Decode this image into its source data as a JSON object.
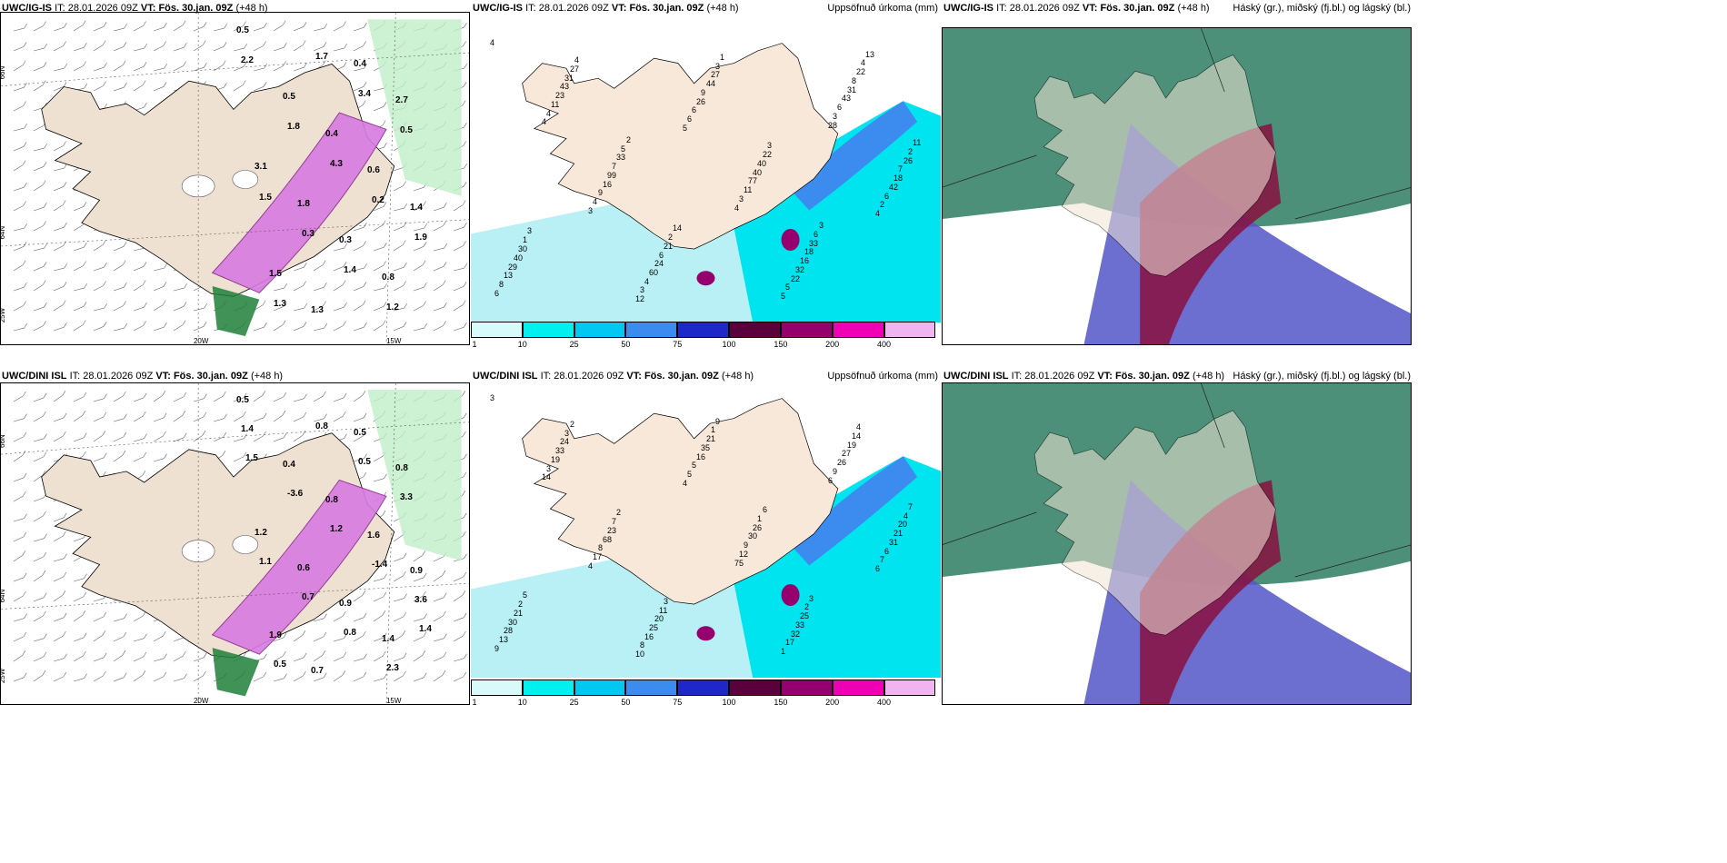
{
  "panels": [
    {
      "model": "UWC/IG-IS",
      "it_label": "IT:",
      "it": "28.01.2026 09Z",
      "vt_label": "VT:",
      "vt": "Fös. 30.jan. 09Z",
      "lead": "(+48 h)",
      "right_title": "",
      "type": "temp"
    },
    {
      "model": "UWC/IG-IS",
      "it_label": "IT:",
      "it": "28.01.2026 09Z",
      "vt_label": "VT:",
      "vt": "Fös. 30.jan. 09Z",
      "lead": "(+48 h)",
      "right_title": "Uppsöfnuð úrkoma (mm)",
      "type": "precip"
    },
    {
      "model": "UWC/IG-IS",
      "it_label": "IT:",
      "it": "28.01.2026 09Z",
      "vt_label": "VT:",
      "vt": "Fös. 30.jan. 09Z",
      "lead": "(+48 h)",
      "right_title": "Háský (gr.), miðský (fj.bl.) og lágský (bl.)",
      "type": "cloud"
    },
    {
      "model": "UWC/DINI ISL",
      "it_label": "IT:",
      "it": "28.01.2026 09Z",
      "vt_label": "VT:",
      "vt": "Fös. 30.jan. 09Z",
      "lead": "(+48 h)",
      "right_title": "",
      "type": "temp"
    },
    {
      "model": "UWC/DINI ISL",
      "it_label": "IT:",
      "it": "28.01.2026 09Z",
      "vt_label": "VT:",
      "vt": "Fös. 30.jan. 09Z",
      "lead": "(+48 h)",
      "right_title": "Uppsöfnuð úrkoma (mm)",
      "type": "precip"
    },
    {
      "model": "UWC/DINI ISL",
      "it_label": "IT:",
      "it": "28.01.2026 09Z",
      "vt_label": "VT:",
      "vt": "Fös. 30.jan. 09Z",
      "lead": "(+48 h)",
      "right_title": "Háský (gr.), miðský (fj.bl.) og lágský (bl.)",
      "type": "cloud"
    }
  ],
  "axis_labels": {
    "lat_top": "66N",
    "lat_mid": "64N",
    "lat_bottom": "25W",
    "lon_left": "20W",
    "lon_right": "15W"
  },
  "colorbar": {
    "ticks": [
      "1",
      "10",
      "25",
      "50",
      "75",
      "100",
      "150",
      "200",
      "400"
    ],
    "colors": [
      "#d8fafa",
      "#00f0f0",
      "#00c8f0",
      "#3c8cf0",
      "#1e28c8",
      "#5a003c",
      "#96006e",
      "#f000b4",
      "#f0b4f0"
    ]
  },
  "temp_labels_top": [
    "0.5",
    "1.4",
    "2.7",
    "0.8",
    "0.6",
    "0.4",
    "0.3",
    "0.4",
    "1.3",
    "1.8",
    "0.5",
    "1.5",
    "3.1",
    "2.2",
    "1.9",
    "0.5",
    "1.2",
    "0.2",
    "3.4",
    "1.4",
    "4.3",
    "1.7",
    "0.3",
    "1.8",
    "1.3",
    "1.5"
  ],
  "temp_labels_bottom": [
    "0.5",
    "0.9",
    "0.8",
    "1.4",
    "1.6",
    "0.5",
    "0.9",
    "0.8",
    "0.7",
    "0.6",
    "0.4",
    "1.9",
    "1.2",
    "1.4",
    "3.6",
    "3.3",
    "2.3",
    "-1.4",
    "0.5",
    "0.8",
    "1.2",
    "0.8",
    "0.7",
    "-3.6",
    "0.5",
    "1.1",
    "1.5",
    "1.4"
  ],
  "precip_labels_top": [
    "4",
    "5",
    "4",
    "12",
    "28",
    "3",
    "5",
    "4",
    "4",
    "6",
    "6",
    "2",
    "3",
    "3",
    "4",
    "5",
    "4",
    "3",
    "8",
    "6",
    "6",
    "4",
    "6",
    "9",
    "22",
    "11",
    "11",
    "13",
    "26",
    "42",
    "60",
    "43",
    "16",
    "32",
    "23",
    "77",
    "29",
    "9",
    "18",
    "24",
    "31",
    "99",
    "16",
    "43",
    "40",
    "40",
    "44",
    "7",
    "6",
    "8",
    "7",
    "18",
    "31",
    "40",
    "30",
    "27",
    "26",
    "21",
    "22",
    "33",
    "33",
    "27",
    "22",
    "1",
    "3",
    "2",
    "2",
    "4",
    "5",
    "6",
    "4",
    "3",
    "3",
    "1",
    "11",
    "14",
    "13",
    "2",
    "3"
  ],
  "precip_labels_bottom": [
    "3",
    "4",
    "6",
    "10",
    "6",
    "4",
    "1",
    "14",
    "75",
    "9",
    "5",
    "7",
    "8",
    "9",
    "17",
    "17",
    "3",
    "12",
    "13",
    "5",
    "6",
    "16",
    "26",
    "8",
    "32",
    "19",
    "9",
    "28",
    "16",
    "31",
    "25",
    "27",
    "68",
    "33",
    "33",
    "30",
    "30",
    "35",
    "21",
    "20",
    "19",
    "23",
    "25",
    "24",
    "26",
    "21",
    "21",
    "20",
    "11",
    "14",
    "7",
    "2",
    "3",
    "1",
    "2",
    "1",
    "4",
    "3",
    "4",
    "2",
    "3",
    "2",
    "6",
    "5",
    "9",
    "7"
  ]
}
